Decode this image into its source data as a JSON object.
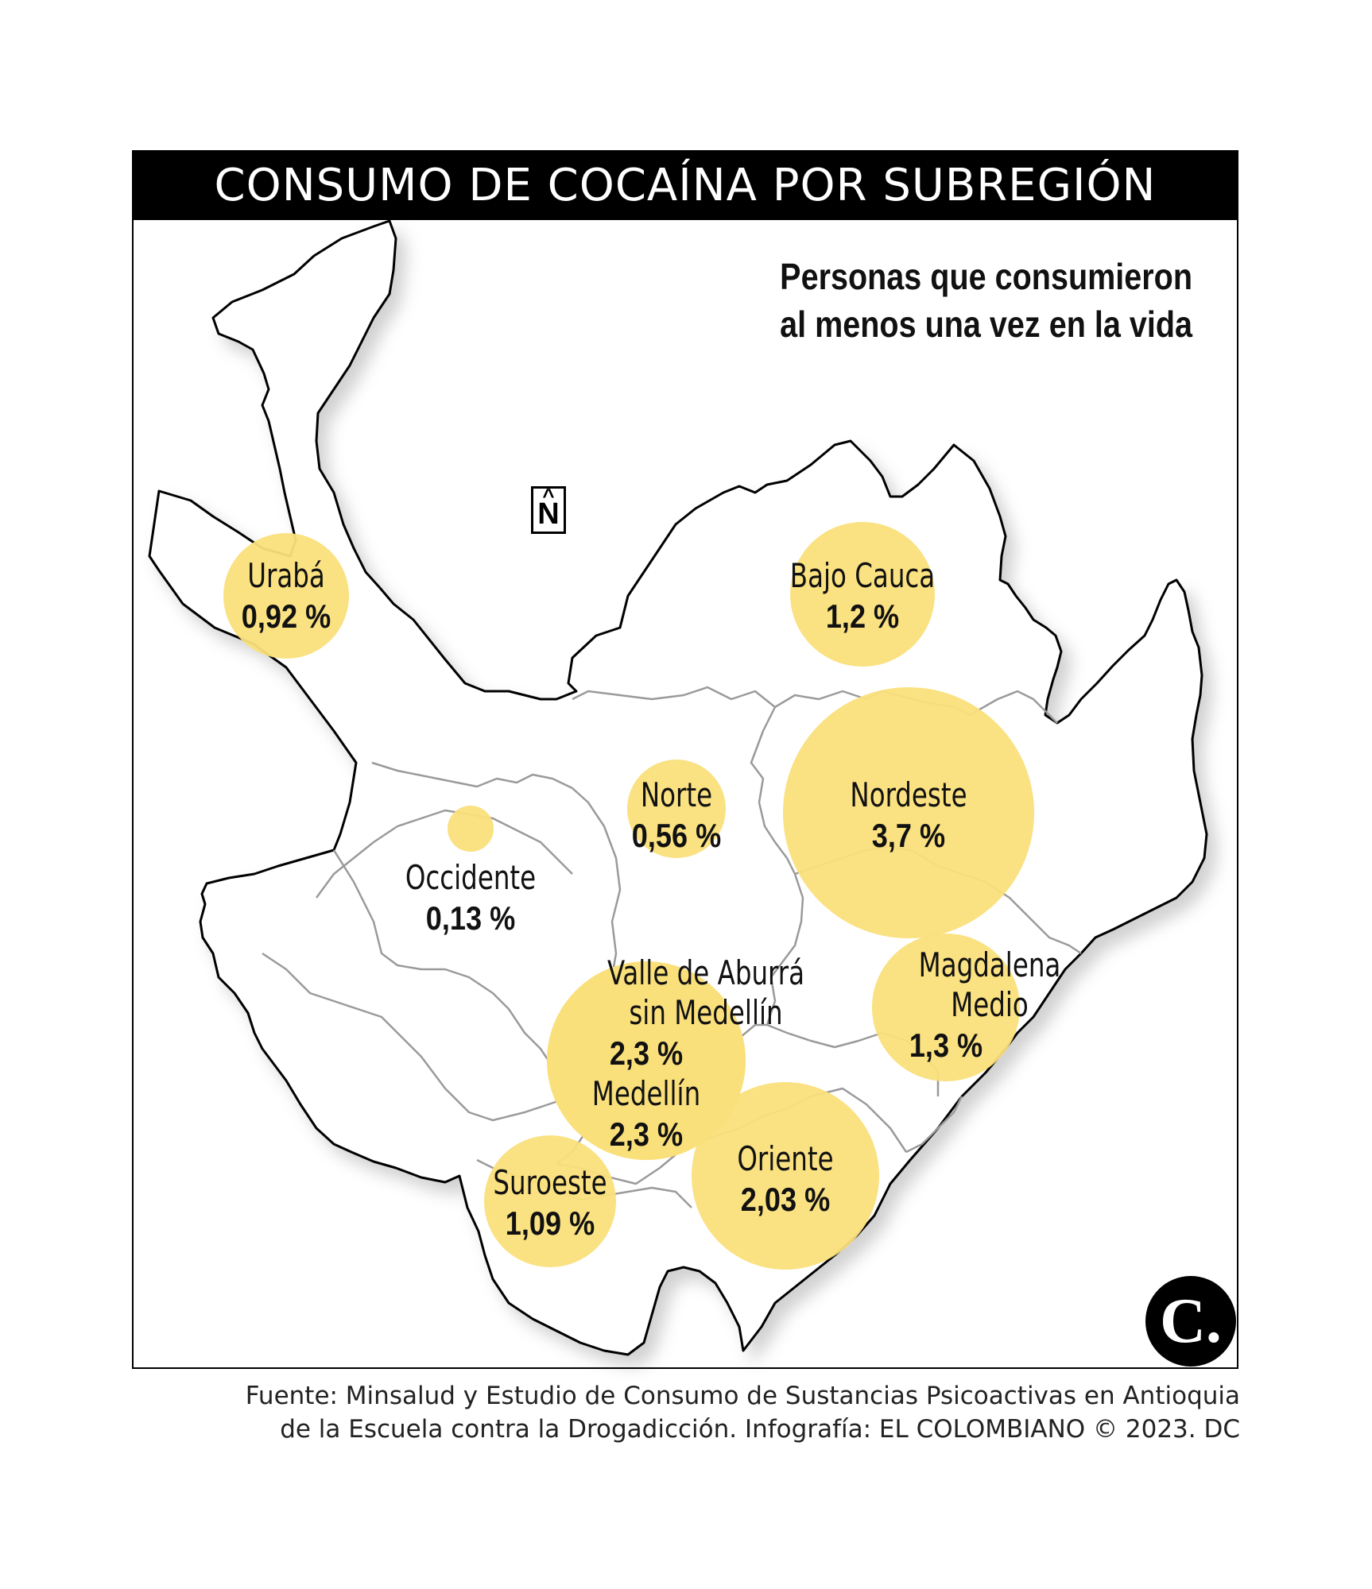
{
  "header": {
    "title": "CONSUMO DE COCAÍNA POR SUBREGIÓN",
    "subtitle_line1": "Personas que consumieron",
    "subtitle_line2": "al menos una vez en la vida"
  },
  "map": {
    "north_label": "N",
    "bubble_color": "#fadf7a",
    "subregions": [
      {
        "name": "Urabá",
        "value": "0,92 %",
        "pct": 0.92
      },
      {
        "name": "Bajo Cauca",
        "value": "1,2 %",
        "pct": 1.2
      },
      {
        "name": "Norte",
        "value": "0,56 %",
        "pct": 0.56
      },
      {
        "name": "Nordeste",
        "value": "3,7 %",
        "pct": 3.7
      },
      {
        "name": "Occidente",
        "value": "0,13 %",
        "pct": 0.13
      },
      {
        "name": "Valle de Aburrá sin Medellín",
        "value": "2,3 %",
        "pct": 2.3
      },
      {
        "name": "Medellín",
        "value": "2,3 %",
        "pct": 2.3
      },
      {
        "name": "Magdalena Medio",
        "value": "1,3 %",
        "pct": 1.3
      },
      {
        "name": "Oriente",
        "value": "2,03 %",
        "pct": 2.03
      },
      {
        "name": "Suroeste",
        "value": "1,09 %",
        "pct": 1.09
      }
    ]
  },
  "footer": {
    "logo_text": "C.",
    "source_line1": "Fuente: Minsalud y Estudio de Consumo de Sustancias Psicoactivas en Antioquia",
    "source_line2": "de la Escuela contra la Drogadicción. Infografía: EL COLOMBIANO © 2023. DC"
  }
}
